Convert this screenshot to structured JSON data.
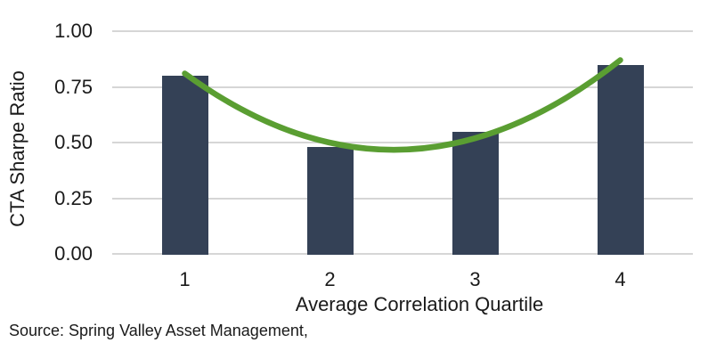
{
  "chart_data": {
    "type": "bar",
    "title": "",
    "categories": [
      "1",
      "2",
      "3",
      "4"
    ],
    "values": [
      0.8,
      0.48,
      0.55,
      0.85
    ],
    "xlabel": "Average Correlation Quartile",
    "ylabel": "CTA Sharpe Ratio",
    "ylim": [
      0,
      1.0
    ],
    "yticks": [
      {
        "label": "0.00",
        "value": 0.0
      },
      {
        "label": "0.25",
        "value": 0.25
      },
      {
        "label": "0.50",
        "value": 0.5
      },
      {
        "label": "0.75",
        "value": 0.75
      },
      {
        "label": "1.00",
        "value": 1.0
      }
    ],
    "grid": true,
    "legend_position": "none",
    "bar_color": "#344156",
    "gridline_color": "#d6d6d6",
    "trendline": {
      "type": "polynomial-order-2",
      "color": "#5a9e32",
      "stroke_width": 6.5,
      "points": [
        {
          "x": 1.0,
          "value": 0.81
        },
        {
          "x": 2.5,
          "value": 0.468
        },
        {
          "x": 4.0,
          "value": 0.87
        }
      ]
    }
  },
  "source_note": "Source: Spring Valley Asset Management,",
  "colors": {
    "text": "#1a1a1a",
    "background": "#ffffff"
  }
}
